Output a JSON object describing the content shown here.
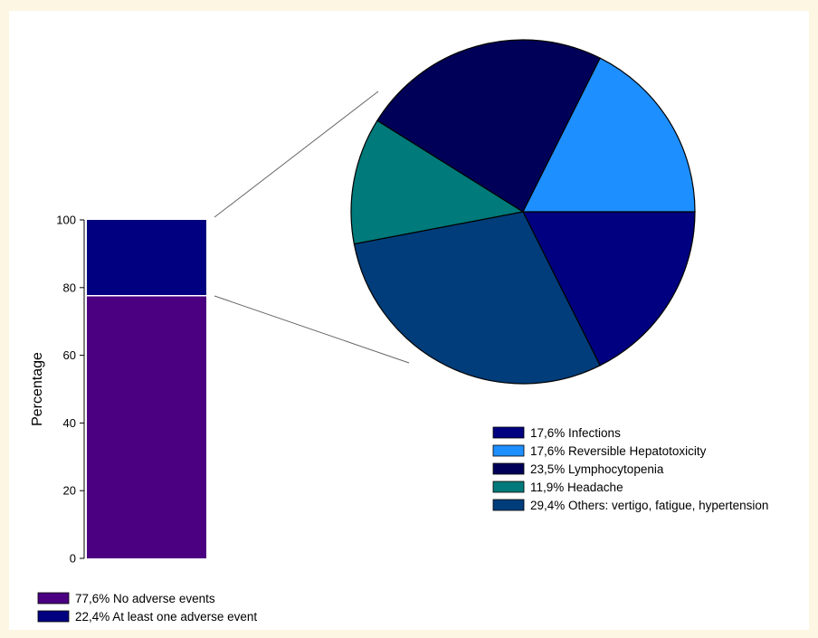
{
  "chart_data": [
    {
      "type": "bar",
      "stacked": true,
      "ylabel": "Percentage",
      "ylim": [
        0,
        100
      ],
      "yticks": [
        "0",
        "20",
        "40",
        "60",
        "80",
        "100"
      ],
      "segments": [
        {
          "label": "77,6% No adverse events",
          "value": 77.6,
          "color": "#4b0082"
        },
        {
          "label": "22,4% At least one adverse event",
          "value": 22.4,
          "color": "#000080"
        }
      ],
      "legend_position": "bottom-left"
    },
    {
      "type": "pie",
      "slices": [
        {
          "label": "17,6% Infections",
          "value": 17.6,
          "color": "#000080"
        },
        {
          "label": "17,6% Reversible Hepatotoxicity",
          "value": 17.6,
          "color": "#1e8fff"
        },
        {
          "label": "23,5% Lymphocytopenia",
          "value": 23.5,
          "color": "#000058"
        },
        {
          "label": "11,9% Headache",
          "value": 11.9,
          "color": "#007a7a"
        },
        {
          "label": "29,4% Others: vertigo, fatigue, hypertension",
          "value": 29.4,
          "color": "#003d7a"
        }
      ],
      "legend_position": "bottom-right"
    }
  ]
}
